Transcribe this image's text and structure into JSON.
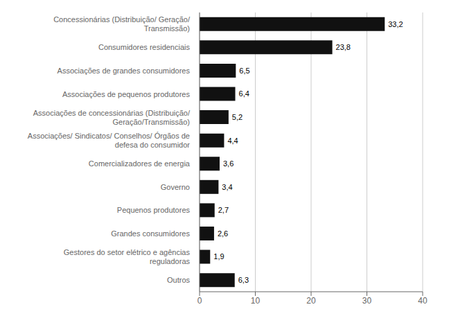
{
  "chart_data": {
    "type": "bar",
    "orientation": "horizontal",
    "categories": [
      "Outros",
      "Gestores do setor elétrico e agências\nreguladoras",
      "Grandes consumidores",
      "Pequenos produtores",
      "Governo",
      "Comercializadores de energia",
      "Associações/ Sindicatos/ Conselhos/ Órgãos de\ndefesa do consumidor",
      "Associações de concessionárias (Distribuição/\nGeração/Transmissão)",
      "Associações de pequenos produtores",
      "Associações de grandes consumidores",
      "Consumidores residenciais",
      "Concessionárias (Distribuição/ Geração/\nTransmissão)"
    ],
    "values": [
      6.3,
      1.9,
      2.6,
      2.7,
      3.4,
      3.6,
      4.4,
      5.2,
      6.4,
      6.5,
      23.8,
      33.2
    ],
    "value_labels": [
      "6,3",
      "1,9",
      "2,6",
      "2,7",
      "3,4",
      "3,6",
      "4,4",
      "5,2",
      "6,4",
      "6,5",
      "23,8",
      "33,2"
    ],
    "data_labels": true,
    "color": "#111111",
    "xlim": [
      0,
      40
    ],
    "xticks": [
      0,
      10,
      20,
      30,
      40
    ],
    "grid": true
  }
}
